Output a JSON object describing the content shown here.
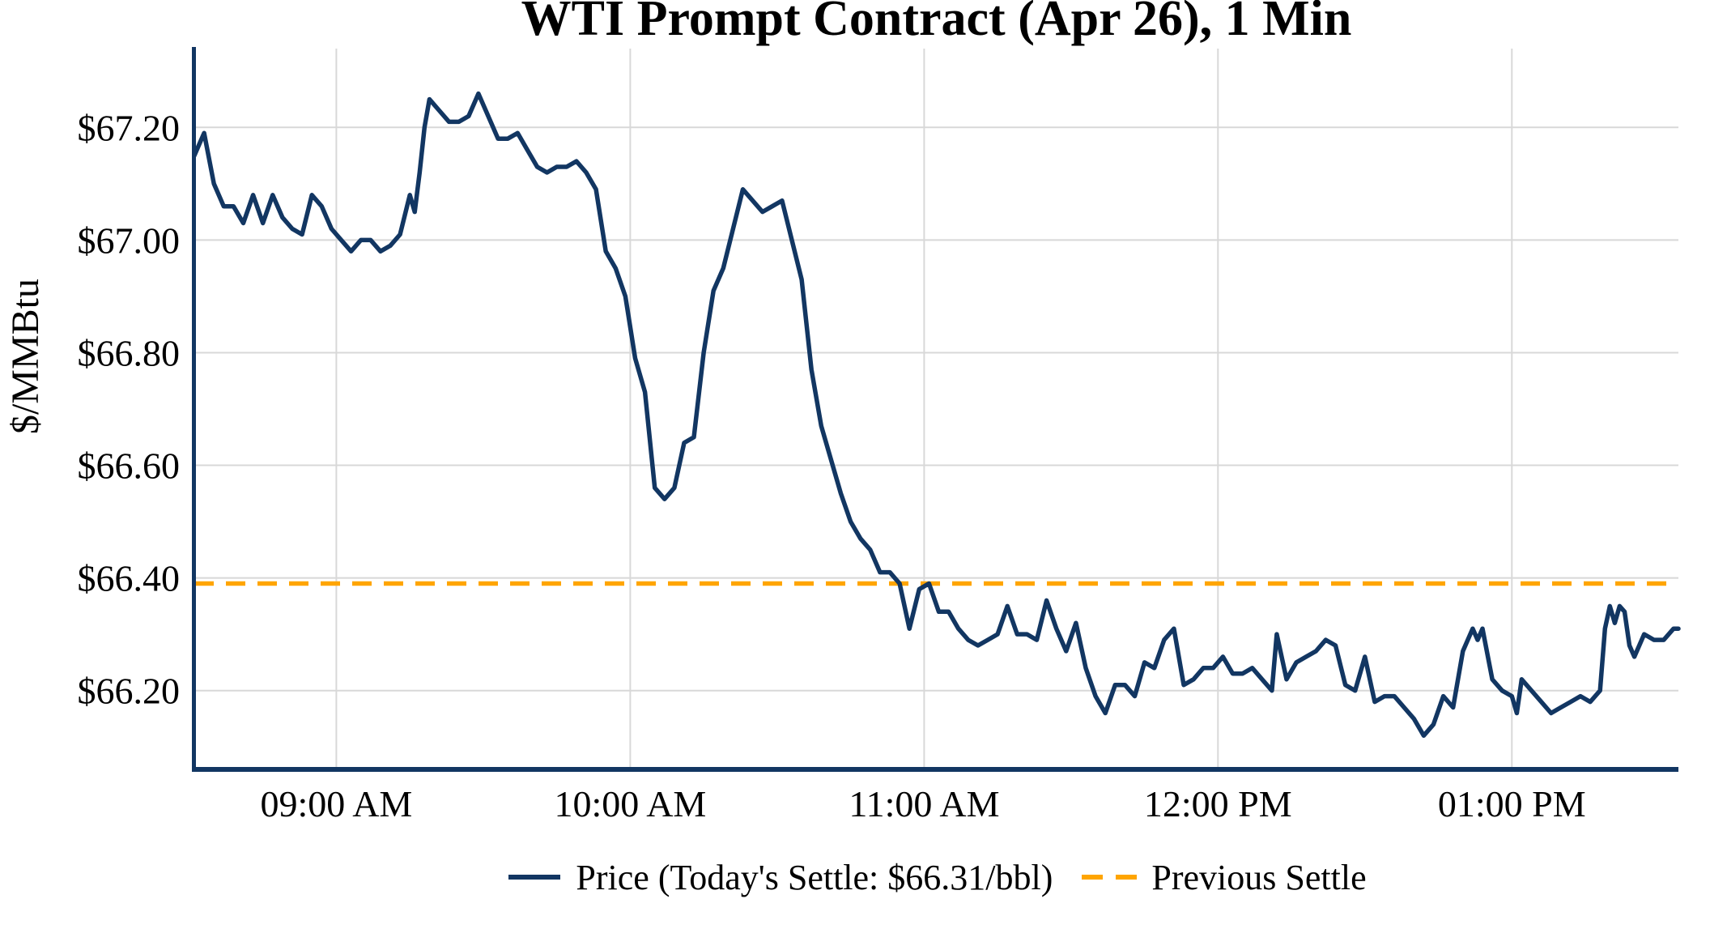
{
  "chart_data": {
    "type": "line",
    "title": "WTI Prompt Contract (Apr 26), 1 Min",
    "xlabel": "",
    "ylabel": "$/MMBtu",
    "grid": true,
    "legend_position": "bottom",
    "legend": {
      "price": "Price (Today's Settle: $66.31/bbl)",
      "previous_settle": "Previous Settle"
    },
    "todays_settle": 66.31,
    "previous_settle": 66.39,
    "ylim": [
      66.06,
      67.34
    ],
    "y_ticks": [
      66.2,
      66.4,
      66.6,
      66.8,
      67.0,
      67.2
    ],
    "y_tick_prefix": "$",
    "x_range": [
      "08:31",
      "13:34"
    ],
    "x_ticks": [
      {
        "time": "09:00",
        "label": "09:00 AM"
      },
      {
        "time": "10:00",
        "label": "10:00 AM"
      },
      {
        "time": "11:00",
        "label": "11:00 AM"
      },
      {
        "time": "12:00",
        "label": "12:00 PM"
      },
      {
        "time": "13:00",
        "label": "01:00 PM"
      }
    ],
    "colors": {
      "price_line": "#123662",
      "previous_settle": "#FFA500",
      "gridline": "#D8D8D8",
      "axis_spine": "#123662",
      "text": "#000000"
    },
    "series": [
      {
        "name": "Price (Today's Settle: $66.31/bbl)",
        "type": "line",
        "color": "#123662",
        "points": [
          [
            "08:31",
            67.15
          ],
          [
            "08:33",
            67.19
          ],
          [
            "08:35",
            67.1
          ],
          [
            "08:37",
            67.06
          ],
          [
            "08:39",
            67.06
          ],
          [
            "08:41",
            67.03
          ],
          [
            "08:43",
            67.08
          ],
          [
            "08:45",
            67.03
          ],
          [
            "08:47",
            67.08
          ],
          [
            "08:49",
            67.04
          ],
          [
            "08:51",
            67.02
          ],
          [
            "08:53",
            67.01
          ],
          [
            "08:55",
            67.08
          ],
          [
            "08:57",
            67.06
          ],
          [
            "08:59",
            67.02
          ],
          [
            "09:01",
            67.0
          ],
          [
            "09:03",
            66.98
          ],
          [
            "09:05",
            67.0
          ],
          [
            "09:07",
            67.0
          ],
          [
            "09:09",
            66.98
          ],
          [
            "09:11",
            66.99
          ],
          [
            "09:13",
            67.01
          ],
          [
            "09:15",
            67.08
          ],
          [
            "09:16",
            67.05
          ],
          [
            "09:17",
            67.12
          ],
          [
            "09:18",
            67.2
          ],
          [
            "09:19",
            67.25
          ],
          [
            "09:21",
            67.23
          ],
          [
            "09:23",
            67.21
          ],
          [
            "09:25",
            67.21
          ],
          [
            "09:27",
            67.22
          ],
          [
            "09:29",
            67.26
          ],
          [
            "09:31",
            67.22
          ],
          [
            "09:33",
            67.18
          ],
          [
            "09:35",
            67.18
          ],
          [
            "09:37",
            67.19
          ],
          [
            "09:39",
            67.16
          ],
          [
            "09:41",
            67.13
          ],
          [
            "09:43",
            67.12
          ],
          [
            "09:45",
            67.13
          ],
          [
            "09:47",
            67.13
          ],
          [
            "09:49",
            67.14
          ],
          [
            "09:51",
            67.12
          ],
          [
            "09:53",
            67.09
          ],
          [
            "09:55",
            66.98
          ],
          [
            "09:57",
            66.95
          ],
          [
            "09:59",
            66.9
          ],
          [
            "10:01",
            66.79
          ],
          [
            "10:03",
            66.73
          ],
          [
            "10:05",
            66.56
          ],
          [
            "10:07",
            66.54
          ],
          [
            "10:09",
            66.56
          ],
          [
            "10:11",
            66.64
          ],
          [
            "10:13",
            66.65
          ],
          [
            "10:15",
            66.8
          ],
          [
            "10:17",
            66.91
          ],
          [
            "10:19",
            66.95
          ],
          [
            "10:21",
            67.02
          ],
          [
            "10:23",
            67.09
          ],
          [
            "10:25",
            67.07
          ],
          [
            "10:27",
            67.05
          ],
          [
            "10:29",
            67.06
          ],
          [
            "10:31",
            67.07
          ],
          [
            "10:33",
            67.0
          ],
          [
            "10:35",
            66.93
          ],
          [
            "10:37",
            66.77
          ],
          [
            "10:39",
            66.67
          ],
          [
            "10:41",
            66.61
          ],
          [
            "10:43",
            66.55
          ],
          [
            "10:45",
            66.5
          ],
          [
            "10:47",
            66.47
          ],
          [
            "10:49",
            66.45
          ],
          [
            "10:51",
            66.41
          ],
          [
            "10:53",
            66.41
          ],
          [
            "10:55",
            66.39
          ],
          [
            "10:57",
            66.31
          ],
          [
            "10:59",
            66.38
          ],
          [
            "11:01",
            66.39
          ],
          [
            "11:03",
            66.34
          ],
          [
            "11:05",
            66.34
          ],
          [
            "11:07",
            66.31
          ],
          [
            "11:09",
            66.29
          ],
          [
            "11:11",
            66.28
          ],
          [
            "11:13",
            66.29
          ],
          [
            "11:15",
            66.3
          ],
          [
            "11:17",
            66.35
          ],
          [
            "11:19",
            66.3
          ],
          [
            "11:21",
            66.3
          ],
          [
            "11:23",
            66.29
          ],
          [
            "11:25",
            66.36
          ],
          [
            "11:27",
            66.31
          ],
          [
            "11:29",
            66.27
          ],
          [
            "11:31",
            66.32
          ],
          [
            "11:33",
            66.24
          ],
          [
            "11:35",
            66.19
          ],
          [
            "11:37",
            66.16
          ],
          [
            "11:39",
            66.21
          ],
          [
            "11:41",
            66.21
          ],
          [
            "11:43",
            66.19
          ],
          [
            "11:45",
            66.25
          ],
          [
            "11:47",
            66.24
          ],
          [
            "11:49",
            66.29
          ],
          [
            "11:51",
            66.31
          ],
          [
            "11:53",
            66.21
          ],
          [
            "11:55",
            66.22
          ],
          [
            "11:57",
            66.24
          ],
          [
            "11:59",
            66.24
          ],
          [
            "12:01",
            66.26
          ],
          [
            "12:03",
            66.23
          ],
          [
            "12:05",
            66.23
          ],
          [
            "12:07",
            66.24
          ],
          [
            "12:09",
            66.22
          ],
          [
            "12:11",
            66.2
          ],
          [
            "12:12",
            66.3
          ],
          [
            "12:14",
            66.22
          ],
          [
            "12:16",
            66.25
          ],
          [
            "12:18",
            66.26
          ],
          [
            "12:20",
            66.27
          ],
          [
            "12:22",
            66.29
          ],
          [
            "12:24",
            66.28
          ],
          [
            "12:26",
            66.21
          ],
          [
            "12:28",
            66.2
          ],
          [
            "12:30",
            66.26
          ],
          [
            "12:32",
            66.18
          ],
          [
            "12:34",
            66.19
          ],
          [
            "12:36",
            66.19
          ],
          [
            "12:38",
            66.17
          ],
          [
            "12:40",
            66.15
          ],
          [
            "12:42",
            66.12
          ],
          [
            "12:44",
            66.14
          ],
          [
            "12:46",
            66.19
          ],
          [
            "12:48",
            66.17
          ],
          [
            "12:50",
            66.27
          ],
          [
            "12:52",
            66.31
          ],
          [
            "12:53",
            66.29
          ],
          [
            "12:54",
            66.31
          ],
          [
            "12:56",
            66.22
          ],
          [
            "12:58",
            66.2
          ],
          [
            "13:00",
            66.19
          ],
          [
            "13:01",
            66.16
          ],
          [
            "13:02",
            66.22
          ],
          [
            "13:04",
            66.2
          ],
          [
            "13:06",
            66.18
          ],
          [
            "13:08",
            66.16
          ],
          [
            "13:10",
            66.17
          ],
          [
            "13:12",
            66.18
          ],
          [
            "13:14",
            66.19
          ],
          [
            "13:16",
            66.18
          ],
          [
            "13:18",
            66.2
          ],
          [
            "13:19",
            66.31
          ],
          [
            "13:20",
            66.35
          ],
          [
            "13:21",
            66.32
          ],
          [
            "13:22",
            66.35
          ],
          [
            "13:23",
            66.34
          ],
          [
            "13:24",
            66.28
          ],
          [
            "13:25",
            66.26
          ],
          [
            "13:27",
            66.3
          ],
          [
            "13:29",
            66.29
          ],
          [
            "13:31",
            66.29
          ],
          [
            "13:33",
            66.31
          ],
          [
            "13:34",
            66.31
          ]
        ]
      },
      {
        "name": "Previous Settle",
        "type": "dashed-hline",
        "color": "#FFA500",
        "value": 66.39
      }
    ]
  }
}
